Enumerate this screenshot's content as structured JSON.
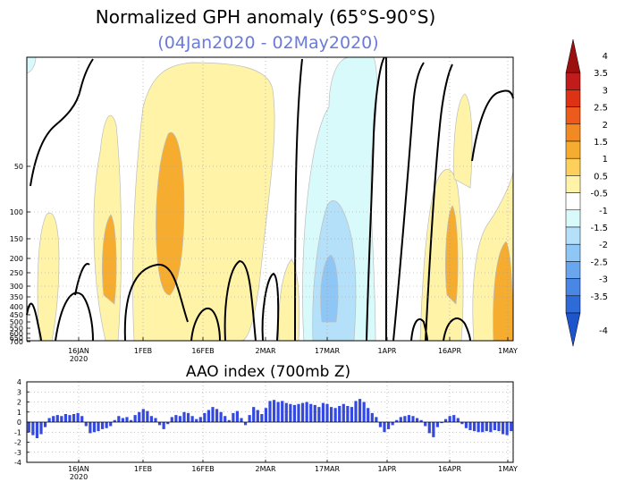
{
  "chart_data": [
    {
      "type": "heatmap",
      "title": "Normalized GPH anomaly (65°S-90°S)",
      "subtitle": "(04Jan2020 - 02May2020)",
      "y_ticks": [
        "50",
        "100",
        "150",
        "200",
        "250",
        "300",
        "350",
        "400",
        "450",
        "500",
        "550",
        "600",
        "650",
        "700"
      ],
      "x_ticks": [
        "16JAN",
        "1FEB",
        "16FEB",
        "2MAR",
        "17MAR",
        "1APR",
        "16APR",
        "1MAY"
      ],
      "x_ticks_sub": [
        "2020",
        "",
        "",
        "",
        "",
        "",
        "",
        ""
      ],
      "colorbar_ticks": [
        "4",
        "3.5",
        "3",
        "2.5",
        "2",
        "1.5",
        "1",
        "0.5",
        "-0.5",
        "-1",
        "-1.5",
        "-2",
        "-2.5",
        "-3",
        "-3.5",
        "-4"
      ],
      "colorbar_colors": [
        "#9c0f0f",
        "#c21b1b",
        "#dd3214",
        "#ec5a1c",
        "#f18a22",
        "#f6ac2e",
        "#fcd05a",
        "#fff3a8",
        "#ffffff",
        "#d8fafa",
        "#b4e0fa",
        "#8ec6f6",
        "#6aa6ee",
        "#4a86e4",
        "#2f6ad9",
        "#1e55cc"
      ],
      "grid": true
    },
    {
      "type": "bar",
      "title": "AAO index (700mb Z)",
      "x_ticks": [
        "16JAN",
        "1FEB",
        "16FEB",
        "2MAR",
        "17MAR",
        "1APR",
        "16APR",
        "1MAY"
      ],
      "x_ticks_sub": [
        "2020",
        "",
        "",
        "",
        "",
        "",
        "",
        ""
      ],
      "y_ticks": [
        "4",
        "3",
        "2",
        "1",
        "0",
        "-1",
        "-2",
        "-3",
        "-4"
      ],
      "ylim": [
        -4,
        4
      ],
      "x_start": "2020-01-04",
      "x_end": "2020-05-02",
      "bar_color": "#3349e0",
      "grid": true,
      "values": [
        -1.0,
        -1.3,
        -1.6,
        -1.2,
        -0.5,
        0.4,
        0.6,
        0.7,
        0.6,
        0.8,
        0.7,
        0.8,
        0.9,
        0.6,
        -0.4,
        -1.1,
        -1.0,
        -0.9,
        -0.7,
        -0.6,
        -0.4,
        0.2,
        0.6,
        0.4,
        0.5,
        0.2,
        0.7,
        1.0,
        1.3,
        1.1,
        0.6,
        0.4,
        -0.3,
        -0.7,
        -0.2,
        0.5,
        0.7,
        0.6,
        1.0,
        0.9,
        0.6,
        0.3,
        0.5,
        0.9,
        1.2,
        1.5,
        1.3,
        1.0,
        0.6,
        0.2,
        0.9,
        1.1,
        0.4,
        -0.3,
        0.7,
        1.5,
        1.2,
        0.8,
        1.4,
        2.1,
        2.2,
        2.0,
        2.1,
        1.9,
        1.8,
        1.7,
        1.8,
        1.9,
        2.0,
        1.8,
        1.7,
        1.5,
        1.9,
        1.8,
        1.5,
        1.4,
        1.6,
        1.8,
        1.6,
        1.5,
        2.1,
        2.3,
        2.0,
        1.4,
        0.9,
        0.5,
        -0.5,
        -1.0,
        -0.7,
        -0.3,
        0.2,
        0.5,
        0.6,
        0.7,
        0.6,
        0.4,
        0.2,
        -0.4,
        -1.1,
        -1.5,
        -0.5,
        -0.1,
        0.3,
        0.6,
        0.7,
        0.4,
        -0.2,
        -0.6,
        -0.8,
        -0.9,
        -1.0,
        -1.0,
        -0.9,
        -1.0,
        -0.8,
        -0.9,
        -1.2,
        -1.3,
        -0.9
      ]
    }
  ]
}
